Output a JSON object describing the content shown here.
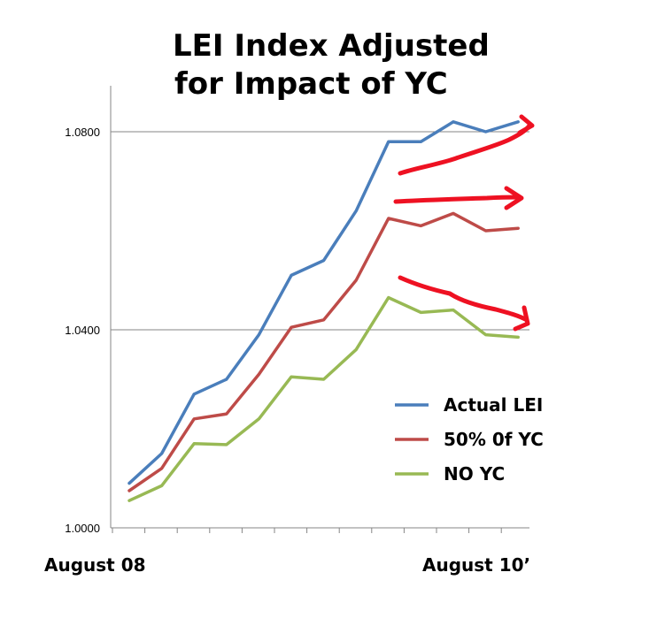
{
  "chart_data": {
    "type": "line",
    "title_lines": [
      "LEI Index Adjusted",
      "for Impact of YC"
    ],
    "x_start_label": "August 08",
    "x_end_label": "August 10’",
    "ylim": [
      1.0,
      1.08
    ],
    "yticks": [
      "1.0800",
      "1.0400",
      "1.0000"
    ],
    "grid": true,
    "legend_position": "right",
    "series": [
      {
        "name": "Actual LEI",
        "color": "#4a7ebb",
        "values": [
          1.009,
          1.015,
          1.027,
          1.03,
          1.039,
          1.051,
          1.054,
          1.064,
          1.078,
          1.078,
          1.082,
          1.08,
          1.082
        ]
      },
      {
        "name": "50% 0f YC",
        "color": "#be4b48",
        "values": [
          1.0075,
          1.012,
          1.022,
          1.023,
          1.031,
          1.0405,
          1.042,
          1.05,
          1.0625,
          1.061,
          1.0635,
          1.06,
          1.0605
        ]
      },
      {
        "name": "NO YC",
        "color": "#98b954",
        "values": [
          1.0055,
          1.0085,
          1.017,
          1.0168,
          1.022,
          1.0305,
          1.03,
          1.036,
          1.0465,
          1.0435,
          1.044,
          1.039,
          1.0385
        ]
      }
    ],
    "annotation_color": "#ee1122",
    "annotations": [
      "arrow-up-right",
      "arrow-right",
      "arrow-down-right"
    ]
  }
}
